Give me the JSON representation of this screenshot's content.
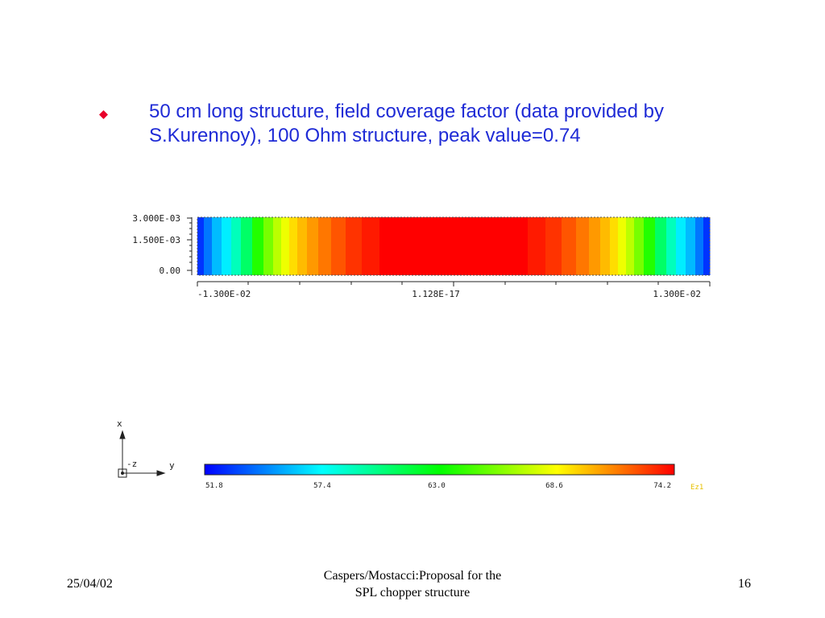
{
  "slide": {
    "bullet_text": "50 cm long structure, field coverage factor (data provided by S.Kurennoy), 100 Ohm structure, peak value=0.74"
  },
  "field_plot": {
    "y_tick_labels": [
      "3.000E-03",
      "1.500E-03",
      "0.00"
    ],
    "x_tick_labels": [
      "-1.300E-02",
      "1.128E-17",
      "1.300E-02"
    ],
    "axis_labels": {
      "x": "x",
      "z": "-z",
      "y": "y"
    }
  },
  "colorbar": {
    "tick_labels": [
      "51.8",
      "57.4",
      "63.0",
      "68.6",
      "74.2"
    ],
    "unit_label": "Ez1",
    "range": [
      51.8,
      74.2
    ]
  },
  "footer": {
    "date": "25/04/02",
    "title_line1": "Caspers/Mostacci:Proposal for the",
    "title_line2": "SPL  chopper structure",
    "page_number": "16"
  },
  "colors": {
    "bullet": "#e8002a",
    "text": "#1f2bd6"
  }
}
